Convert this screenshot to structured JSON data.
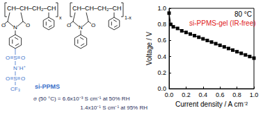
{
  "structure": {
    "name": "si-PPMS",
    "backbone": [
      "CH–CH–CH₂–CH",
      "CH–CH–CH₂–CH"
    ],
    "repeat": [
      "x",
      "1-x"
    ],
    "imide_atoms": [
      "O",
      "N",
      "O"
    ],
    "acid_atoms": [
      "O",
      "S",
      "O",
      "N⁻H⁺",
      "O",
      "S",
      "O",
      "CF₃"
    ],
    "acid_color": "#3a6fc9"
  },
  "conductivity": [
    "σ (50 °C) = 6.6x10⁻³ S cm⁻¹ at 50% RH",
    "1.4x10⁻¹ S cm⁻¹ at 95% RH"
  ],
  "chart_data": {
    "type": "line",
    "xlabel": "Current density / A cm⁻²",
    "ylabel": "Voltage / V",
    "annotations": [
      {
        "text": "80 °C",
        "color": "#000000"
      },
      {
        "text": "si-PPMS-gel (IR-free)",
        "color": "#e02020"
      }
    ],
    "x": [
      0,
      0.02,
      0.05,
      0.1,
      0.15,
      0.2,
      0.25,
      0.3,
      0.35,
      0.4,
      0.45,
      0.5,
      0.55,
      0.6,
      0.65,
      0.7,
      0.75,
      0.8,
      0.85,
      0.9,
      0.95,
      1.0
    ],
    "series": [
      {
        "name": "si-PPMS-gel (IR-free)",
        "color": "#000000",
        "marker": "square",
        "values": [
          0.94,
          0.8,
          0.77,
          0.75,
          0.72,
          0.7,
          0.68,
          0.66,
          0.64,
          0.62,
          0.6,
          0.58,
          0.56,
          0.54,
          0.52,
          0.5,
          0.48,
          0.46,
          0.44,
          0.42,
          0.4,
          0.38
        ]
      }
    ],
    "xlim": [
      0,
      1
    ],
    "ylim": [
      0,
      1
    ],
    "xticks": [
      {
        "value": 0,
        "label": "0.0"
      },
      0.2,
      0.4,
      0.6,
      0.8,
      {
        "value": 1,
        "label": "1.0"
      }
    ],
    "yticks": [
      {
        "value": 0,
        "label": "0.0"
      },
      0.2,
      0.4,
      0.6,
      0.8,
      {
        "value": 1,
        "label": "1.0"
      }
    ],
    "grid": false
  }
}
